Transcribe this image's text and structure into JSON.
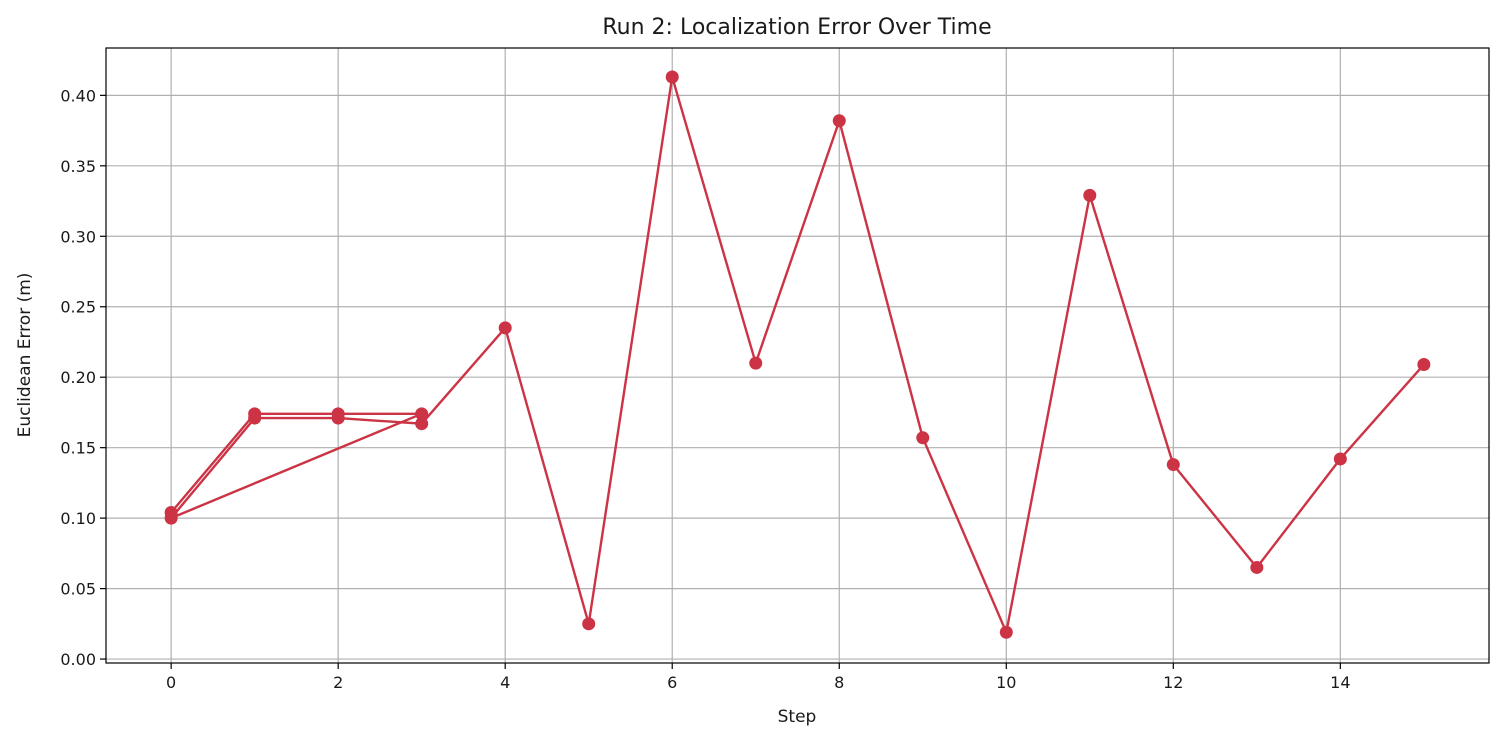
{
  "chart_data": {
    "type": "line",
    "title": "Run 2: Localization Error Over Time",
    "xlabel": "Step",
    "ylabel": "Euclidean Error (m)",
    "xlim": [
      -0.78,
      15.78
    ],
    "ylim": [
      -0.0028,
      0.4336
    ],
    "x_ticks": [
      0,
      2,
      4,
      6,
      8,
      10,
      12,
      14
    ],
    "y_ticks": [
      0.0,
      0.05,
      0.1,
      0.15,
      0.2,
      0.25,
      0.3,
      0.35,
      0.4
    ],
    "y_tick_labels": [
      "0.00",
      "0.05",
      "0.10",
      "0.15",
      "0.20",
      "0.25",
      "0.30",
      "0.35",
      "0.40"
    ],
    "grid": true,
    "series": [
      {
        "color": "#cc3344",
        "marker": "circle",
        "x": [
          0,
          1,
          2,
          3,
          0,
          1,
          2,
          3,
          4,
          5,
          6,
          7,
          8,
          9,
          10,
          11,
          12,
          13,
          14,
          15
        ],
        "values": [
          0.104,
          0.174,
          0.174,
          0.174,
          0.1,
          0.171,
          0.171,
          0.167,
          0.235,
          0.025,
          0.413,
          0.21,
          0.382,
          0.157,
          0.019,
          0.329,
          0.138,
          0.065,
          0.142,
          0.209
        ]
      }
    ]
  }
}
